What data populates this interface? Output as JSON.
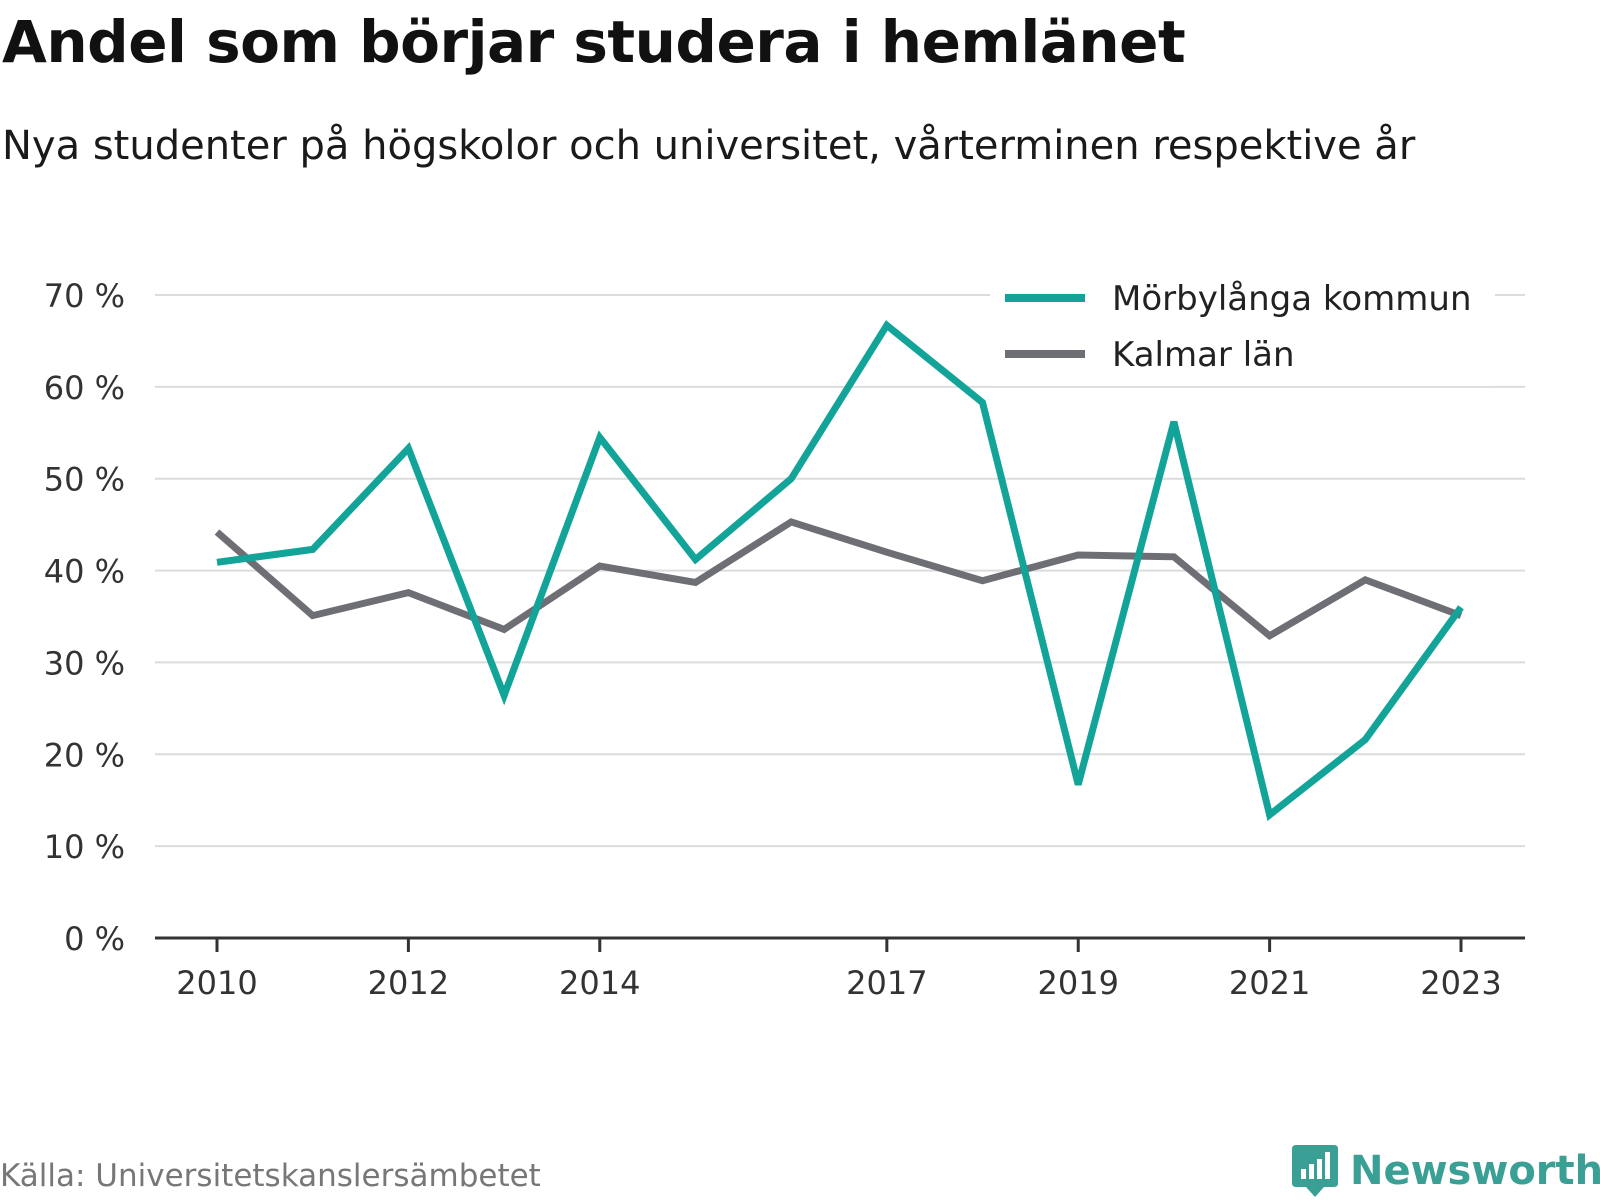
{
  "title": "Andel som börjar studera i hemlänet",
  "subtitle": "Nya studenter på högskolor och universitet, vårterminen respektive år",
  "source": "Källa: Universitetskanslersämbetet",
  "brand": "Newsworthy",
  "chart_data": {
    "type": "line",
    "x": [
      2010,
      2011,
      2012,
      2013,
      2014,
      2015,
      2016,
      2017,
      2018,
      2019,
      2020,
      2021,
      2022,
      2023
    ],
    "x_tick_labels": [
      "2010",
      "2012",
      "2014",
      "2017",
      "2019",
      "2021",
      "2023"
    ],
    "y_tick_labels": [
      "0 %",
      "10 %",
      "20 %",
      "30 %",
      "40 %",
      "50 %",
      "60 %",
      "70 %"
    ],
    "ylim": [
      0,
      70
    ],
    "grid": true,
    "legend_position": "top-right",
    "series": [
      {
        "name": "Mörbylånga kommun",
        "color": "#12a399",
        "values": [
          40.9,
          42.3,
          53.3,
          26.4,
          54.5,
          41.2,
          50.0,
          66.7,
          58.3,
          16.7,
          56.2,
          13.4,
          21.6,
          36.0
        ]
      },
      {
        "name": "Kalmar län",
        "color": "#6e6e75",
        "values": [
          44.2,
          35.1,
          37.6,
          33.6,
          40.5,
          38.7,
          45.3,
          42.0,
          38.9,
          41.7,
          41.5,
          32.9,
          39.0,
          35.1
        ]
      }
    ]
  }
}
